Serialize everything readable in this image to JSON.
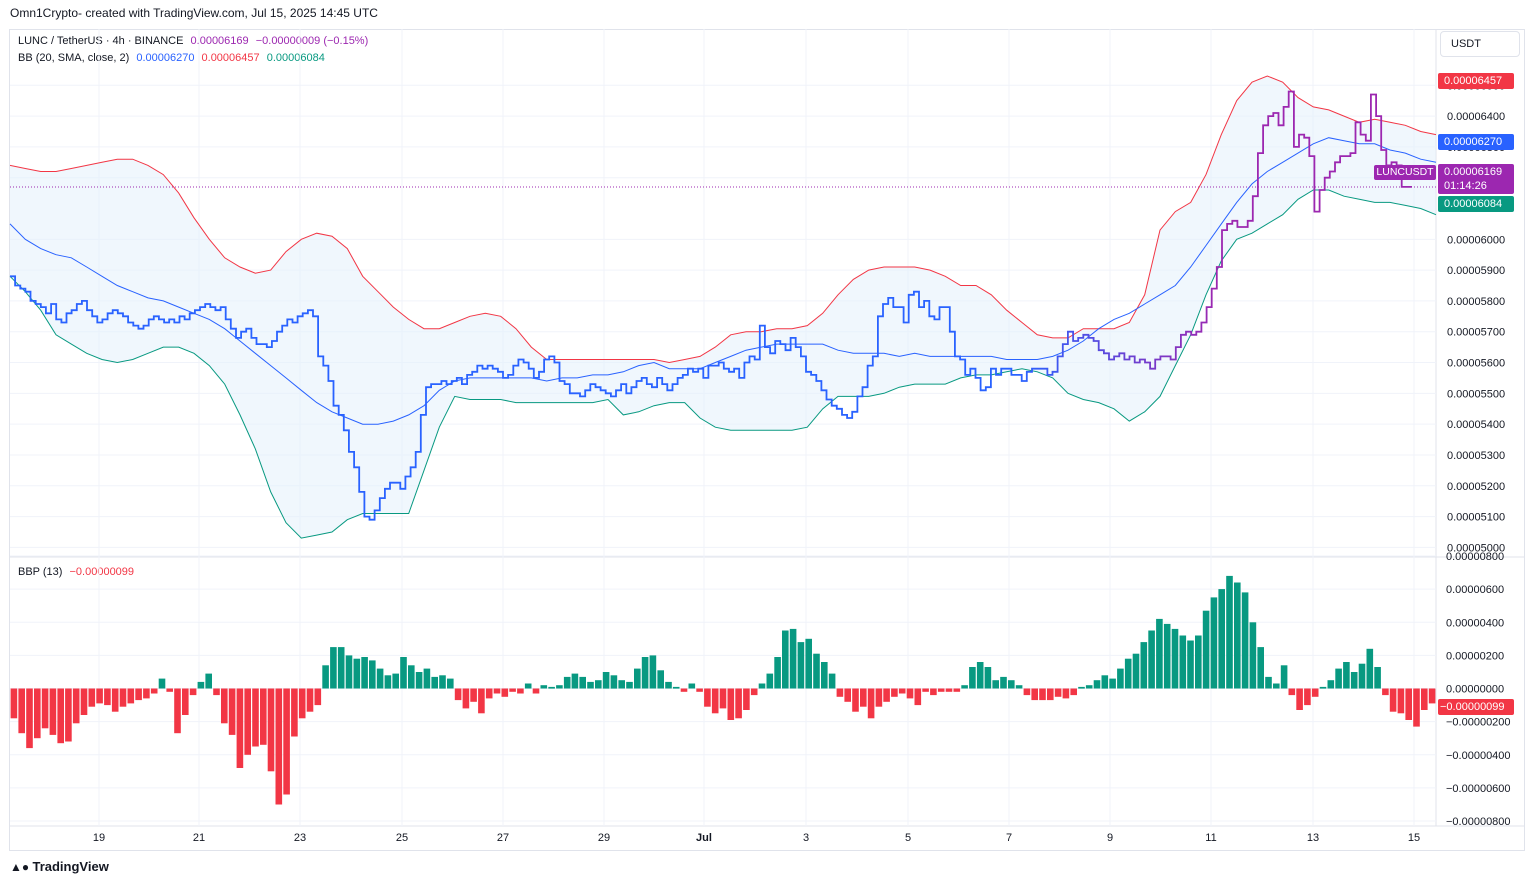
{
  "header": {
    "text": "Omn1Crypto- created with TradingView.com, Jul 15, 2025 14:45 UTC"
  },
  "legend_main": {
    "symbol": "LUNC / TetherUS · 4h · BINANCE",
    "price": "0.00006169",
    "change": "−0.00000009 (−0.15%)"
  },
  "legend_bb": {
    "label": "BB (20, SMA, close, 2)",
    "basis": "0.00006270",
    "upper": "0.00006457",
    "lower": "0.00006084"
  },
  "legend_bbp": {
    "label": "BBP (13)",
    "value": "−0.00000099"
  },
  "currency_button": "USDT",
  "price_tags": {
    "upper": "0.00006457",
    "basis": "0.00006270",
    "last": "0.00006169",
    "countdown": "01:14:26",
    "lower": "0.00006084",
    "symbol": "LUNCUSDT",
    "bbp": "−0.00000099"
  },
  "brand": "TradingView",
  "colors": {
    "price_blue": "#2962ff",
    "price_purple": "#9c27b0",
    "upper": "#f23645",
    "basis": "#2962ff",
    "lower": "#089981",
    "band_fill": "#e3f0fb",
    "bull": "#089981",
    "bear": "#f23645"
  },
  "chart_data": [
    {
      "type": "line",
      "title": "LUNC / TetherUS · 4h · BINANCE",
      "x_tick_labels": [
        "19",
        "21",
        "23",
        "25",
        "27",
        "29",
        "Jul",
        "3",
        "5",
        "7",
        "9",
        "11",
        "13",
        "15"
      ],
      "y_tick_labels": [
        "0.00006500",
        "0.00006400",
        "0.00006300",
        "0.00006200",
        "0.00006000",
        "0.00005900",
        "0.00005800",
        "0.00005700",
        "0.00005600",
        "0.00005500",
        "0.00005400",
        "0.00005300",
        "0.00005200",
        "0.00005100",
        "0.00005000"
      ],
      "ylim": [
        4.985e-05,
        6.66e-05
      ],
      "grid": true,
      "series": [
        {
          "name": "LUNC / TetherUS",
          "step": true,
          "values": [
            5.88e-05,
            5.85e-05,
            5.84e-05,
            5.83e-05,
            5.8e-05,
            5.79e-05,
            5.78e-05,
            5.76e-05,
            5.79e-05,
            5.74e-05,
            5.73e-05,
            5.76e-05,
            5.77e-05,
            5.79e-05,
            5.8e-05,
            5.77e-05,
            5.75e-05,
            5.73e-05,
            5.74e-05,
            5.76e-05,
            5.77e-05,
            5.76e-05,
            5.75e-05,
            5.73e-05,
            5.72e-05,
            5.71e-05,
            5.72e-05,
            5.74e-05,
            5.75e-05,
            5.74e-05,
            5.73e-05,
            5.74e-05,
            5.73e-05,
            5.75e-05,
            5.74e-05,
            5.76e-05,
            5.77e-05,
            5.78e-05,
            5.79e-05,
            5.78e-05,
            5.77e-05,
            5.78e-05,
            5.74e-05,
            5.71e-05,
            5.68e-05,
            5.7e-05,
            5.71e-05,
            5.68e-05,
            5.66e-05,
            5.66e-05,
            5.65e-05,
            5.67e-05,
            5.7e-05,
            5.72e-05,
            5.74e-05,
            5.73e-05,
            5.75e-05,
            5.76e-05,
            5.77e-05,
            5.75e-05,
            5.62e-05,
            5.59e-05,
            5.54e-05,
            5.46e-05,
            5.43e-05,
            5.38e-05,
            5.31e-05,
            5.26e-05,
            5.18e-05,
            5.1e-05,
            5.09e-05,
            5.12e-05,
            5.16e-05,
            5.19e-05,
            5.21e-05,
            5.21e-05,
            5.19e-05,
            5.23e-05,
            5.26e-05,
            5.31e-05,
            5.43e-05,
            5.52e-05,
            5.53e-05,
            5.53e-05,
            5.54e-05,
            5.53e-05,
            5.54e-05,
            5.55e-05,
            5.53e-05,
            5.56e-05,
            5.57e-05,
            5.59e-05,
            5.58e-05,
            5.59e-05,
            5.58e-05,
            5.57e-05,
            5.55e-05,
            5.56e-05,
            5.59e-05,
            5.61e-05,
            5.6e-05,
            5.58e-05,
            5.55e-05,
            5.57e-05,
            5.61e-05,
            5.62e-05,
            5.6e-05,
            5.54e-05,
            5.53e-05,
            5.5e-05,
            5.5e-05,
            5.49e-05,
            5.51e-05,
            5.53e-05,
            5.52e-05,
            5.51e-05,
            5.5e-05,
            5.49e-05,
            5.51e-05,
            5.53e-05,
            5.5e-05,
            5.52e-05,
            5.54e-05,
            5.55e-05,
            5.53e-05,
            5.52e-05,
            5.55e-05,
            5.53e-05,
            5.51e-05,
            5.53e-05,
            5.55e-05,
            5.56e-05,
            5.58e-05,
            5.57e-05,
            5.58e-05,
            5.55e-05,
            5.59e-05,
            5.59e-05,
            5.6e-05,
            5.58e-05,
            5.57e-05,
            5.58e-05,
            5.55e-05,
            5.6e-05,
            5.62e-05,
            5.61e-05,
            5.72e-05,
            5.65e-05,
            5.63e-05,
            5.67e-05,
            5.66e-05,
            5.64e-05,
            5.68e-05,
            5.65e-05,
            5.62e-05,
            5.57e-05,
            5.56e-05,
            5.54e-05,
            5.51e-05,
            5.48e-05,
            5.46e-05,
            5.45e-05,
            5.43e-05,
            5.42e-05,
            5.44e-05,
            5.49e-05,
            5.52e-05,
            5.59e-05,
            5.62e-05,
            5.75e-05,
            5.79e-05,
            5.81e-05,
            5.78e-05,
            5.78e-05,
            5.73e-05,
            5.82e-05,
            5.83e-05,
            5.78e-05,
            5.8e-05,
            5.75e-05,
            5.74e-05,
            5.78e-05,
            5.78e-05,
            5.7e-05,
            5.62e-05,
            5.61e-05,
            5.56e-05,
            5.58e-05,
            5.55e-05,
            5.51e-05,
            5.52e-05,
            5.58e-05,
            5.56e-05,
            5.58e-05,
            5.58e-05,
            5.56e-05,
            5.56e-05,
            5.54e-05,
            5.57e-05,
            5.58e-05,
            5.58e-05,
            5.58e-05,
            5.56e-05,
            5.57e-05,
            5.62e-05,
            5.66e-05,
            5.7e-05,
            5.67e-05,
            5.68e-05,
            5.69e-05,
            5.68e-05,
            5.67e-05,
            5.64e-05,
            5.63e-05,
            5.61e-05,
            5.62e-05,
            5.63e-05,
            5.61e-05,
            5.62e-05,
            5.6e-05,
            5.61e-05,
            5.6e-05,
            5.58e-05,
            5.61e-05,
            5.62e-05,
            5.62e-05,
            5.61e-05,
            5.65e-05,
            5.69e-05,
            5.7e-05,
            5.69e-05,
            5.7e-05,
            5.73e-05,
            5.78e-05,
            5.84e-05,
            5.91e-05,
            6.03e-05,
            6.05e-05,
            6.06e-05,
            6.04e-05,
            6.04e-05,
            6.06e-05,
            6.14e-05,
            6.28e-05,
            6.37e-05,
            6.4e-05,
            6.41e-05,
            6.37e-05,
            6.43e-05,
            6.48e-05,
            6.3e-05,
            6.34e-05,
            6.33e-05,
            6.27e-05,
            6.09e-05,
            6.16e-05,
            6.2e-05,
            6.22e-05,
            6.25e-05,
            6.27e-05,
            6.27e-05,
            6.28e-05,
            6.38e-05,
            6.34e-05,
            6.32e-05,
            6.47e-05,
            6.4e-05,
            6.29e-05,
            6.24e-05,
            6.25e-05,
            6.24e-05,
            6.17e-05,
            6.17e-05
          ]
        },
        {
          "name": "BB upper",
          "values": [
            6.24e-05,
            6.23e-05,
            6.22e-05,
            6.22e-05,
            6.23e-05,
            6.24e-05,
            6.25e-05,
            6.26e-05,
            6.26e-05,
            6.24e-05,
            6.21e-05,
            6.15e-05,
            6.07e-05,
            6e-05,
            5.94e-05,
            5.91e-05,
            5.89e-05,
            5.9e-05,
            5.96e-05,
            6e-05,
            6.02e-05,
            6.01e-05,
            5.97e-05,
            5.88e-05,
            5.83e-05,
            5.78e-05,
            5.74e-05,
            5.71e-05,
            5.71e-05,
            5.73e-05,
            5.75e-05,
            5.76e-05,
            5.75e-05,
            5.71e-05,
            5.65e-05,
            5.61e-05,
            5.61e-05,
            5.61e-05,
            5.61e-05,
            5.61e-05,
            5.61e-05,
            5.61e-05,
            5.61e-05,
            5.6e-05,
            5.61e-05,
            5.62e-05,
            5.65e-05,
            5.69e-05,
            5.7e-05,
            5.7e-05,
            5.71e-05,
            5.71e-05,
            5.72e-05,
            5.76e-05,
            5.82e-05,
            5.87e-05,
            5.9e-05,
            5.91e-05,
            5.91e-05,
            5.91e-05,
            5.9e-05,
            5.88e-05,
            5.85e-05,
            5.85e-05,
            5.82e-05,
            5.77e-05,
            5.73e-05,
            5.69e-05,
            5.68e-05,
            5.68e-05,
            5.71e-05,
            5.71e-05,
            5.71e-05,
            5.73e-05,
            5.82e-05,
            6.03e-05,
            6.09e-05,
            6.12e-05,
            6.21e-05,
            6.34e-05,
            6.45e-05,
            6.51e-05,
            6.53e-05,
            6.51e-05,
            6.46e-05,
            6.43e-05,
            6.42e-05,
            6.4e-05,
            6.38e-05,
            6.39e-05,
            6.38e-05,
            6.37e-05,
            6.35e-05,
            6.34e-05
          ]
        },
        {
          "name": "BB basis",
          "values": [
            6.05e-05,
            6e-05,
            5.97e-05,
            5.95e-05,
            5.94e-05,
            5.91e-05,
            5.88e-05,
            5.85e-05,
            5.83e-05,
            5.81e-05,
            5.8e-05,
            5.78e-05,
            5.76e-05,
            5.74e-05,
            5.71e-05,
            5.67e-05,
            5.63e-05,
            5.59e-05,
            5.55e-05,
            5.51e-05,
            5.47e-05,
            5.44e-05,
            5.42e-05,
            5.4e-05,
            5.4e-05,
            5.41e-05,
            5.43e-05,
            5.46e-05,
            5.51e-05,
            5.54e-05,
            5.55e-05,
            5.55e-05,
            5.55e-05,
            5.55e-05,
            5.55e-05,
            5.54e-05,
            5.55e-05,
            5.55e-05,
            5.56e-05,
            5.56e-05,
            5.57e-05,
            5.59e-05,
            5.6e-05,
            5.58e-05,
            5.58e-05,
            5.58e-05,
            5.6e-05,
            5.62e-05,
            5.64e-05,
            5.65e-05,
            5.66e-05,
            5.66e-05,
            5.66e-05,
            5.66e-05,
            5.64e-05,
            5.63e-05,
            5.63e-05,
            5.63e-05,
            5.62e-05,
            5.63e-05,
            5.62e-05,
            5.62e-05,
            5.62e-05,
            5.62e-05,
            5.62e-05,
            5.61e-05,
            5.61e-05,
            5.61e-05,
            5.62e-05,
            5.64e-05,
            5.67e-05,
            5.71e-05,
            5.74e-05,
            5.76e-05,
            5.79e-05,
            5.82e-05,
            5.85e-05,
            5.91e-05,
            5.98e-05,
            6.05e-05,
            6.12e-05,
            6.18e-05,
            6.22e-05,
            6.25e-05,
            6.28e-05,
            6.31e-05,
            6.33e-05,
            6.32e-05,
            6.31e-05,
            6.31e-05,
            6.29e-05,
            6.28e-05,
            6.26e-05,
            6.25e-05
          ]
        },
        {
          "name": "BB lower",
          "values": [
            5.88e-05,
            5.83e-05,
            5.77e-05,
            5.69e-05,
            5.66e-05,
            5.63e-05,
            5.61e-05,
            5.6e-05,
            5.61e-05,
            5.63e-05,
            5.65e-05,
            5.65e-05,
            5.63e-05,
            5.59e-05,
            5.53e-05,
            5.43e-05,
            5.32e-05,
            5.18e-05,
            5.08e-05,
            5.03e-05,
            5.04e-05,
            5.05e-05,
            5.09e-05,
            5.11e-05,
            5.11e-05,
            5.11e-05,
            5.11e-05,
            5.25e-05,
            5.39e-05,
            5.49e-05,
            5.48e-05,
            5.48e-05,
            5.48e-05,
            5.47e-05,
            5.47e-05,
            5.47e-05,
            5.47e-05,
            5.47e-05,
            5.47e-05,
            5.48e-05,
            5.43e-05,
            5.44e-05,
            5.46e-05,
            5.47e-05,
            5.47e-05,
            5.42e-05,
            5.39e-05,
            5.38e-05,
            5.38e-05,
            5.38e-05,
            5.38e-05,
            5.38e-05,
            5.39e-05,
            5.45e-05,
            5.49e-05,
            5.49e-05,
            5.49e-05,
            5.5e-05,
            5.52e-05,
            5.53e-05,
            5.53e-05,
            5.53e-05,
            5.55e-05,
            5.56e-05,
            5.56e-05,
            5.57e-05,
            5.58e-05,
            5.57e-05,
            5.55e-05,
            5.5e-05,
            5.48e-05,
            5.47e-05,
            5.45e-05,
            5.41e-05,
            5.44e-05,
            5.49e-05,
            5.59e-05,
            5.69e-05,
            5.82e-05,
            5.93e-05,
            6e-05,
            6.02e-05,
            6.05e-05,
            6.08e-05,
            6.13e-05,
            6.16e-05,
            6.16e-05,
            6.14e-05,
            6.13e-05,
            6.12e-05,
            6.12e-05,
            6.11e-05,
            6.1e-05,
            6.08e-05
          ]
        }
      ]
    },
    {
      "type": "bar",
      "title": "BBP (13)",
      "y_tick_labels": [
        "0.00000800",
        "0.00000600",
        "0.00000400",
        "0.00000200",
        "0.00000000",
        "−0.00000200",
        "−0.00000400",
        "−0.00000600",
        "−0.00000800"
      ],
      "ylim": [
        -8.3e-06,
        8e-06
      ],
      "grid": true,
      "values": [
        -1.8e-06,
        -2.7e-06,
        -3.6e-06,
        -3e-06,
        -2.4e-06,
        -2.8e-06,
        -3.3e-06,
        -3.2e-06,
        -2.1e-06,
        -1.6e-06,
        -1.1e-06,
        -9e-07,
        -1e-06,
        -1.4e-06,
        -1.1e-06,
        -9e-07,
        -7e-07,
        -6e-07,
        -3e-07,
        6e-07,
        -2e-07,
        -2.7e-06,
        -1.6e-06,
        -4e-07,
        4e-07,
        9e-07,
        -4e-07,
        -2.1e-06,
        -2.8e-06,
        -4.8e-06,
        -4e-06,
        -3.5e-06,
        -3.4e-06,
        -5e-06,
        -7e-06,
        -6.4e-06,
        -2.9e-06,
        -1.8e-06,
        -1.4e-06,
        -1e-06,
        1.4e-06,
        2.5e-06,
        2.5e-06,
        2e-06,
        1.8e-06,
        1.9e-06,
        1.7e-06,
        1.2e-06,
        8e-07,
        9e-07,
        1.9e-06,
        1.4e-06,
        1e-06,
        1.2e-06,
        7e-07,
        8e-07,
        6e-07,
        -7e-07,
        -1.2e-06,
        -8e-07,
        -1.5e-06,
        -6e-07,
        -3e-07,
        -5e-07,
        -2e-07,
        -3e-07,
        3e-07,
        -3e-07,
        2e-07,
        1e-07,
        2e-07,
        7e-07,
        9e-07,
        7e-07,
        4e-07,
        5e-07,
        1e-06,
        8e-07,
        5e-07,
        4e-07,
        1.2e-06,
        1.9e-06,
        2e-06,
        1.1e-06,
        4e-07,
        1e-07,
        -2e-07,
        3e-07,
        -2e-07,
        -1.1e-06,
        -1.5e-06,
        -1.2e-06,
        -1.9e-06,
        -1.8e-06,
        -1.3e-06,
        -4e-07,
        3e-07,
        9e-07,
        1.9e-06,
        3.5e-06,
        3.6e-06,
        2.8e-06,
        3e-06,
        2.1e-06,
        1.6e-06,
        9e-07,
        -5e-07,
        -8e-07,
        -1.4e-06,
        -1.1e-06,
        -1.8e-06,
        -1.1e-06,
        -8e-07,
        -5e-07,
        -3e-07,
        -6e-07,
        -1e-06,
        -2e-07,
        -4e-07,
        -2e-07,
        -2e-07,
        -2e-07,
        2e-07,
        1.3e-06,
        1.6e-06,
        1.3e-06,
        5e-07,
        7e-07,
        5e-07,
        2e-07,
        -4e-07,
        -7e-07,
        -7e-07,
        -7e-07,
        -5e-07,
        -6e-07,
        -4e-07,
        1e-07,
        2e-07,
        5e-07,
        8e-07,
        6e-07,
        1.2e-06,
        1.8e-06,
        2.1e-06,
        2.8e-06,
        3.5e-06,
        4.2e-06,
        3.9e-06,
        3.6e-06,
        3.2e-06,
        2.9e-06,
        3.2e-06,
        4.7e-06,
        5.5e-06,
        6e-06,
        6.8e-06,
        6.4e-06,
        5.8e-06,
        4e-06,
        2.5e-06,
        7e-07,
        3e-07,
        1.4e-06,
        -4e-07,
        -1.3e-06,
        -1e-06,
        -5e-07,
        1e-07,
        5e-07,
        1.2e-06,
        1.6e-06,
        1e-06,
        1.5e-06,
        2.4e-06,
        1.3e-06,
        -4e-07,
        -1.4e-06,
        -1.5e-06,
        -1.9e-06,
        -2.3e-06,
        -1.3e-06,
        -9e-07
      ]
    }
  ]
}
